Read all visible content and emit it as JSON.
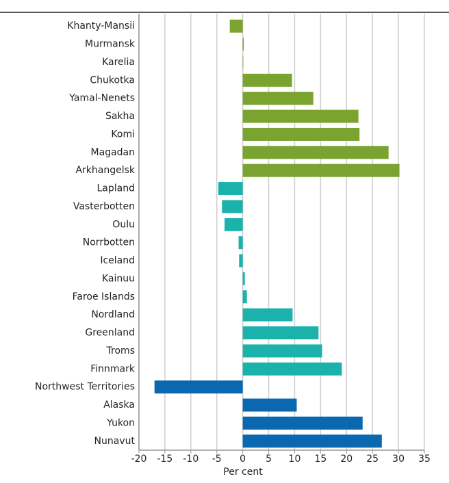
{
  "chart_data": {
    "type": "bar",
    "orientation": "horizontal",
    "categories": [
      "Khanty-Mansii",
      "Murmansk",
      "Karelia",
      "Chukotka",
      "Yamal-Nenets",
      "Sakha",
      "Komi",
      "Magadan",
      "Arkhangelsk",
      "Lapland",
      "Vasterbotten",
      "Oulu",
      "Norrbotten",
      "Iceland",
      "Kainuu",
      "Faroe Islands",
      "Nordland",
      "Greenland",
      "Troms",
      "Finnmark",
      "Northwest Territories",
      "Alaska",
      "Yukon",
      "Nunavut"
    ],
    "values": [
      -2.5,
      0.2,
      0.1,
      9.5,
      13.6,
      22.3,
      22.5,
      28.1,
      30.2,
      -4.7,
      -4,
      -3.5,
      -0.8,
      -0.7,
      0.4,
      0.8,
      9.6,
      14.6,
      15.3,
      19.1,
      -17,
      10.4,
      23.1,
      26.8
    ],
    "colors": [
      "#7aa32f",
      "#7aa32f",
      "#7aa32f",
      "#7aa32f",
      "#7aa32f",
      "#7aa32f",
      "#7aa32f",
      "#7aa32f",
      "#7aa32f",
      "#1cb2ac",
      "#1cb2ac",
      "#1cb2ac",
      "#1cb2ac",
      "#1cb2ac",
      "#1cb2ac",
      "#1cb2ac",
      "#1cb2ac",
      "#1cb2ac",
      "#1cb2ac",
      "#1cb2ac",
      "#0a68b0",
      "#0a68b0",
      "#0a68b0",
      "#0a68b0"
    ],
    "x_label": "Per cent",
    "xlim": [
      -20,
      35
    ],
    "xticks": [
      -20,
      -15,
      -10,
      -5,
      0,
      5,
      10,
      15,
      20,
      25,
      30,
      35
    ],
    "grid": true
  }
}
